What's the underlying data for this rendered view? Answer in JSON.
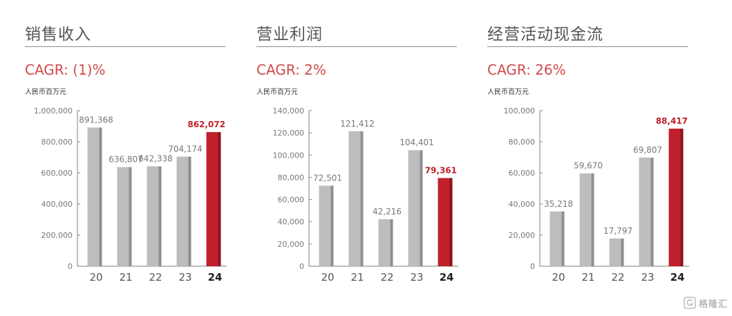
{
  "watermark": {
    "text": "格隆汇",
    "icon": "g-logo-icon"
  },
  "colors": {
    "bar_gray": "#bdbdc0",
    "bar_gray_side": "#8f8f92",
    "bar_red": "#c0212c",
    "bar_red_side": "#8e121b",
    "label_gray": "#777777",
    "label_red": "#c0212c",
    "axis": "#7f7f7f",
    "cagr": "#d14b4b"
  },
  "panels": [
    {
      "title": "销售收入",
      "cagr": "CAGR: (1)%",
      "unit": "人民币百万元",
      "chart_data": {
        "type": "bar",
        "categories": [
          "20",
          "21",
          "22",
          "23",
          "24"
        ],
        "values": [
          891368,
          636807,
          642338,
          704174,
          862072
        ],
        "value_labels": [
          "891,368",
          "636,807",
          "642,338",
          "704,174",
          "862,072"
        ],
        "highlight_index": 4,
        "ylim": [
          0,
          1000000
        ],
        "yticks": [
          0,
          200000,
          400000,
          600000,
          800000,
          1000000
        ],
        "ytick_labels": [
          "0",
          "200,000",
          "400,000",
          "600,000",
          "800,000",
          "1,000,000"
        ]
      }
    },
    {
      "title": "营业利润",
      "cagr": "CAGR: 2%",
      "unit": "人民币百万元",
      "chart_data": {
        "type": "bar",
        "categories": [
          "20",
          "21",
          "22",
          "23",
          "24"
        ],
        "values": [
          72501,
          121412,
          42216,
          104401,
          79361
        ],
        "value_labels": [
          "72,501",
          "121,412",
          "42,216",
          "104,401",
          "79,361"
        ],
        "highlight_index": 4,
        "ylim": [
          0,
          140000
        ],
        "yticks": [
          0,
          20000,
          40000,
          60000,
          80000,
          100000,
          120000,
          140000
        ],
        "ytick_labels": [
          "0",
          "20,000",
          "40,000",
          "60,000",
          "80,000",
          "100,000",
          "120,000",
          "140,000"
        ]
      }
    },
    {
      "title": "经营活动现金流",
      "cagr": "CAGR: 26%",
      "unit": "人民币百万元",
      "chart_data": {
        "type": "bar",
        "categories": [
          "20",
          "21",
          "22",
          "23",
          "24"
        ],
        "values": [
          35218,
          59670,
          17797,
          69807,
          88417
        ],
        "value_labels": [
          "35,218",
          "59,670",
          "17,797",
          "69,807",
          "88,417"
        ],
        "highlight_index": 4,
        "ylim": [
          0,
          100000
        ],
        "yticks": [
          0,
          20000,
          40000,
          60000,
          80000,
          100000
        ],
        "ytick_labels": [
          "0",
          "20,000",
          "40,000",
          "60,000",
          "80,000",
          "100,000"
        ]
      }
    }
  ]
}
